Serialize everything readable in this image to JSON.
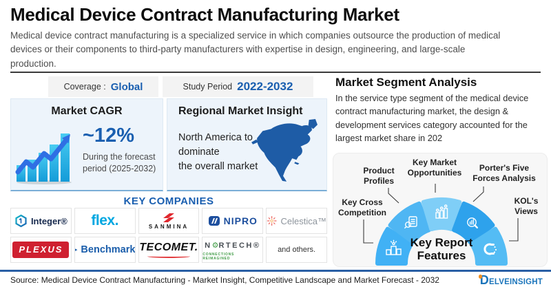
{
  "header": {
    "title": "Medical Device Contract Manufacturing Market",
    "description": "Medical device contract manufacturing is a specialized service in which companies outsource the production of medical devices or their components to third-party manufacturers with expertise in design, engineering, and large-scale production."
  },
  "meta": {
    "coverage_label": "Coverage :",
    "coverage_value": "Global",
    "study_period_label": "Study Period",
    "study_period_value": "2022-2032"
  },
  "cagr_card": {
    "title": "Market CAGR",
    "value": "~12%",
    "caption": "During the forecast period (2025-2032)"
  },
  "regional_card": {
    "title": "Regional Market Insight",
    "text": "North America to\ndominate\nthe overall market"
  },
  "segment_analysis": {
    "title": "Market Segment Analysis",
    "text": "In the service type segment of the medical device contract manufacturing market, the design & development services category accounted for the largest market share in 202"
  },
  "report_features": {
    "center_label": "Key Report Features",
    "items": [
      {
        "label": "Key Cross Competition",
        "icon": "podium-winner-icon",
        "color": "#41B1F5"
      },
      {
        "label": "Product Profiles",
        "icon": "document-search-icon",
        "color": "#4FB6F3"
      },
      {
        "label": "Key Market Opportunities",
        "icon": "growth-chart-icon",
        "color": "#7FCEF7"
      },
      {
        "label": "Porter's Five Forces Analysis",
        "icon": "magnifier-chart-icon",
        "color": "#2EA2EC"
      },
      {
        "label": "KOL's Views",
        "icon": "magnet-icon",
        "color": "#54BCF4"
      }
    ]
  },
  "key_companies": {
    "title": "KEY COMPANIES",
    "items": [
      {
        "name": "Integer®"
      },
      {
        "name": "flex."
      },
      {
        "name": "SANMINA"
      },
      {
        "name": "NIPRO"
      },
      {
        "name": "Celestica™"
      },
      {
        "name": "PLEXUS"
      },
      {
        "name": "Benchmark."
      },
      {
        "name": "TECOMET."
      },
      {
        "name_prefix": "N",
        "name_suffix": "RTECH®",
        "tagline": "CONNECTIONS REIMAGINED"
      },
      {
        "name": "and others."
      }
    ]
  },
  "icons": {
    "play_glyph": "▶",
    "gear_glyph": "⚙"
  },
  "footer": {
    "source": "Source: Medical Device Contract Manufacturing - Market Insight, Competitive Landscape and Market Forecast - 2032",
    "brand": "DELVEINSIGHT"
  },
  "colors": {
    "accent_blue": "#1a5fb0",
    "divider_blue": "#2a5fa5",
    "map_blue": "#1e5ca6",
    "info_card_bg": "#edf4fb",
    "features_card_bg": "#f7f7f7"
  }
}
